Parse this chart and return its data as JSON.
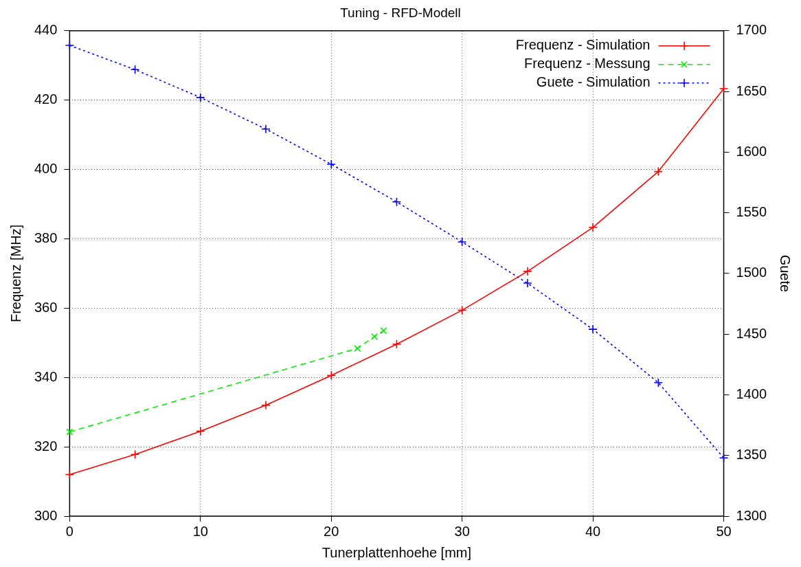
{
  "chart_data": {
    "type": "line",
    "title": "Tuning - RFD-Modell",
    "xlabel": "Tunerplattenhoehe [mm]",
    "ylabel": "Frequenz [MHz]",
    "y2label": "Guete",
    "xlim": [
      0,
      50
    ],
    "xticks": [
      0,
      10,
      20,
      30,
      40,
      50
    ],
    "ylim": [
      300,
      440
    ],
    "yticks": [
      300,
      320,
      340,
      360,
      380,
      400,
      420,
      440
    ],
    "y2lim": [
      1300,
      1700
    ],
    "y2ticks": [
      1300,
      1350,
      1400,
      1450,
      1500,
      1550,
      1600,
      1650,
      1700
    ],
    "grid": true,
    "legend": "top right",
    "series": [
      {
        "name": "Frequenz - Simulation",
        "color": "#ff0000",
        "marker": "cross",
        "line_style": "solid",
        "x": [
          0,
          5,
          10,
          15,
          20,
          25,
          30,
          35,
          40,
          45,
          50
        ],
        "values": [
          312,
          317.8,
          324.5,
          332,
          340.6,
          349.6,
          359.4,
          370.6,
          383.3,
          399.4,
          423.3
        ]
      },
      {
        "name": "Frequenz - Messung",
        "color": "#00ee00",
        "marker": "x",
        "line_style": "dashed",
        "x": [
          0,
          22,
          23.3,
          24
        ],
        "values": [
          324.3,
          348.4,
          351.8,
          353.5
        ]
      },
      {
        "name": "Guete - Simulation",
        "color": "#0000ff",
        "marker": "cross",
        "line_style": "dotted",
        "axis": "y2",
        "x": [
          0,
          5,
          10,
          15,
          20,
          25,
          30,
          35,
          40,
          45,
          50
        ],
        "values": [
          1688,
          1668,
          1645,
          1619,
          1590,
          1559,
          1526,
          1492,
          1454,
          1410,
          1348
        ]
      }
    ]
  }
}
